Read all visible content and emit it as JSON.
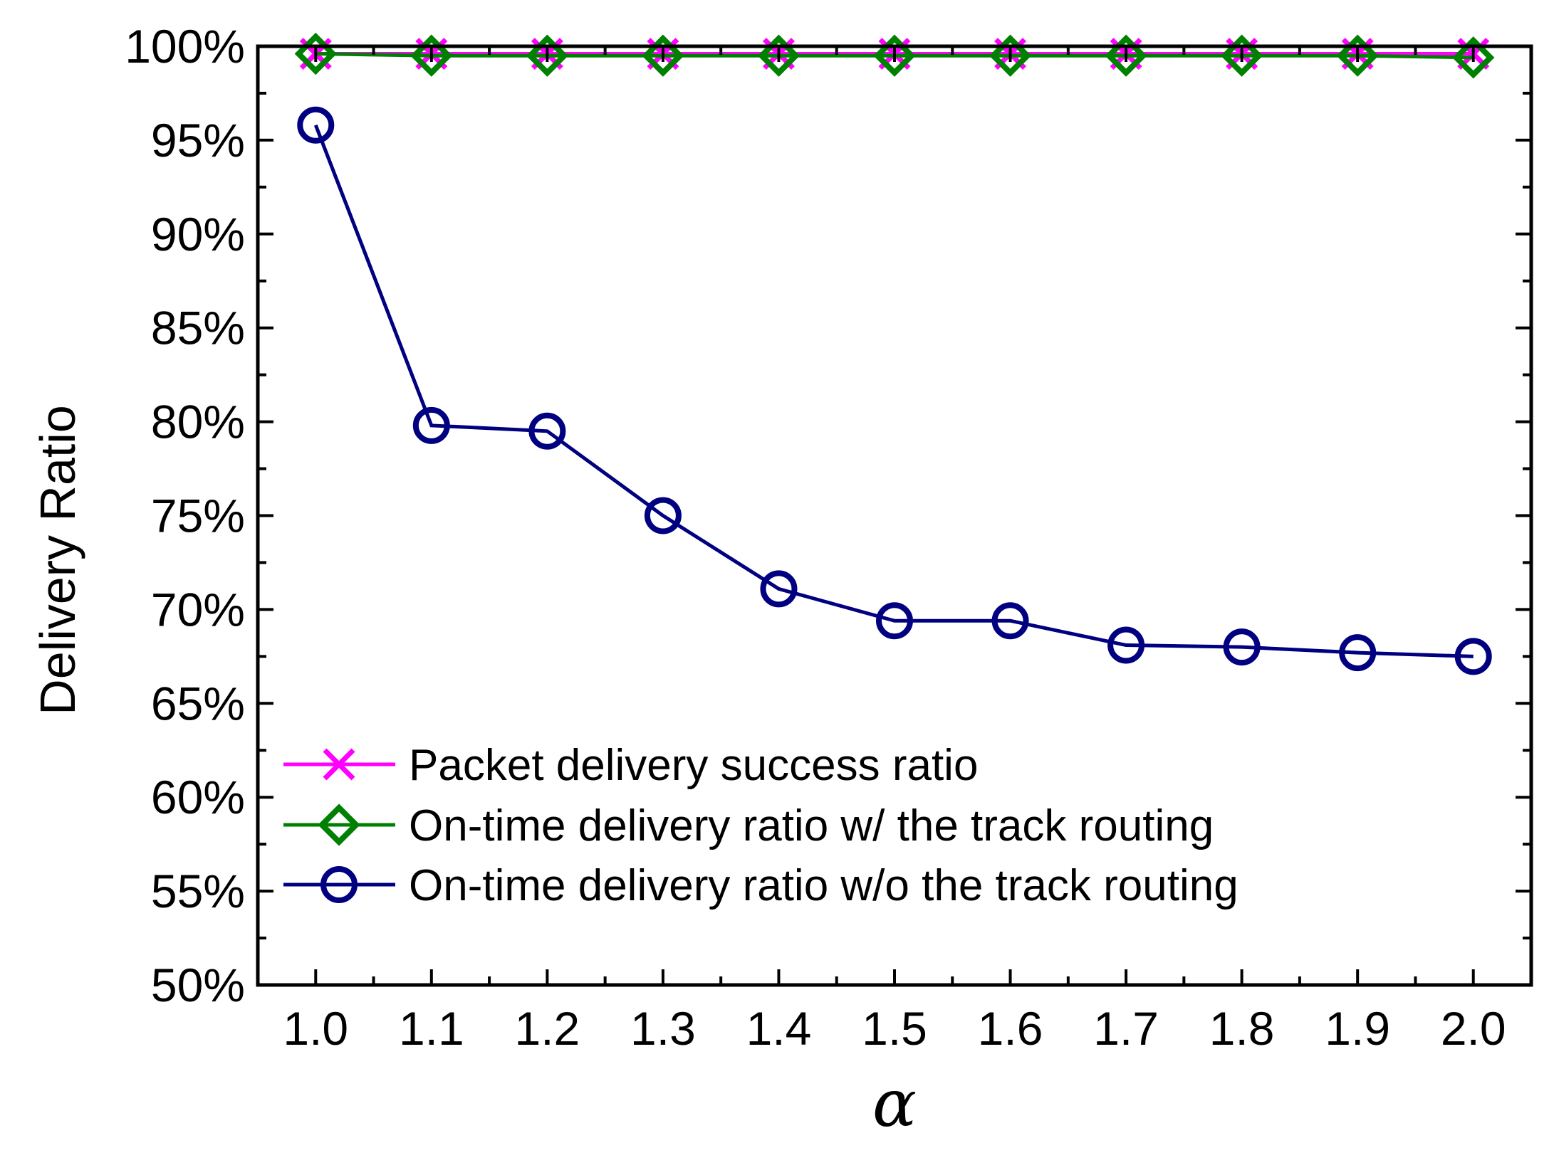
{
  "chart_data": {
    "type": "line",
    "title": "",
    "xlabel": "α",
    "ylabel": "Delivery Ratio",
    "x": [
      1.0,
      1.1,
      1.2,
      1.3,
      1.4,
      1.5,
      1.6,
      1.7,
      1.8,
      1.9,
      2.0
    ],
    "x_tick_labels": [
      "1.0",
      "1.1",
      "1.2",
      "1.3",
      "1.4",
      "1.5",
      "1.6",
      "1.7",
      "1.8",
      "1.9",
      "2.0"
    ],
    "xlim": [
      0.95,
      2.05
    ],
    "ylim": [
      50,
      100
    ],
    "y_ticks": [
      50,
      55,
      60,
      65,
      70,
      75,
      80,
      85,
      90,
      95,
      100
    ],
    "y_tick_labels": [
      "50%",
      "55%",
      "60%",
      "65%",
      "70%",
      "75%",
      "80%",
      "85%",
      "90%",
      "95%",
      "100%"
    ],
    "legend_position": "bottom-left",
    "grid": false,
    "series": [
      {
        "name": "Packet delivery success ratio",
        "marker": "x",
        "color": "#ff00ff",
        "values": [
          99.6,
          99.6,
          99.6,
          99.6,
          99.6,
          99.6,
          99.6,
          99.6,
          99.6,
          99.6,
          99.6
        ]
      },
      {
        "name": "On-time delivery ratio w/ the track routing",
        "marker": "diamond",
        "color": "#008000",
        "values": [
          99.6,
          99.5,
          99.5,
          99.5,
          99.5,
          99.5,
          99.5,
          99.5,
          99.5,
          99.5,
          99.4
        ]
      },
      {
        "name": "On-time delivery ratio w/o the track routing",
        "marker": "circle",
        "color": "#000080",
        "values": [
          95.8,
          79.8,
          79.5,
          75.0,
          71.1,
          69.4,
          69.4,
          68.1,
          68.0,
          67.7,
          67.5
        ]
      }
    ]
  }
}
